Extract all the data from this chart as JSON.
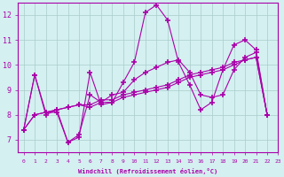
{
  "xlabel": "Windchill (Refroidissement éolien,°C)",
  "background_color": "#d4f0f0",
  "line_color": "#aa00aa",
  "grid_color": "#aacccc",
  "xlim": [
    -0.5,
    23
  ],
  "ylim": [
    6.5,
    12.5
  ],
  "yticks": [
    7,
    8,
    9,
    10,
    11,
    12
  ],
  "xticks": [
    0,
    1,
    2,
    3,
    4,
    5,
    6,
    7,
    8,
    9,
    10,
    11,
    12,
    13,
    14,
    15,
    16,
    17,
    18,
    19,
    20,
    21,
    22,
    23
  ],
  "line1": [
    7.4,
    9.6,
    8.0,
    8.2,
    6.9,
    7.1,
    9.7,
    8.4,
    8.5,
    9.3,
    10.1,
    12.1,
    12.4,
    11.8,
    10.1,
    9.2,
    8.2,
    8.5,
    9.8,
    10.8,
    11.0,
    10.6,
    8.0
  ],
  "line2": [
    7.4,
    9.6,
    8.1,
    8.1,
    6.9,
    7.2,
    8.8,
    8.5,
    8.8,
    8.9,
    9.4,
    9.7,
    9.9,
    10.1,
    10.2,
    9.7,
    8.8,
    8.7,
    8.8,
    9.8,
    10.3,
    10.5,
    8.0
  ],
  "line3": [
    7.4,
    8.0,
    8.1,
    8.2,
    8.3,
    8.4,
    8.3,
    8.5,
    8.5,
    8.7,
    8.8,
    8.9,
    9.0,
    9.1,
    9.3,
    9.5,
    9.6,
    9.7,
    9.8,
    10.0,
    10.2,
    10.3,
    8.0
  ],
  "line4": [
    7.4,
    8.0,
    8.1,
    8.2,
    8.3,
    8.4,
    8.4,
    8.6,
    8.6,
    8.8,
    8.9,
    9.0,
    9.1,
    9.2,
    9.4,
    9.6,
    9.7,
    9.8,
    9.9,
    10.1,
    10.2,
    10.3,
    8.0
  ]
}
